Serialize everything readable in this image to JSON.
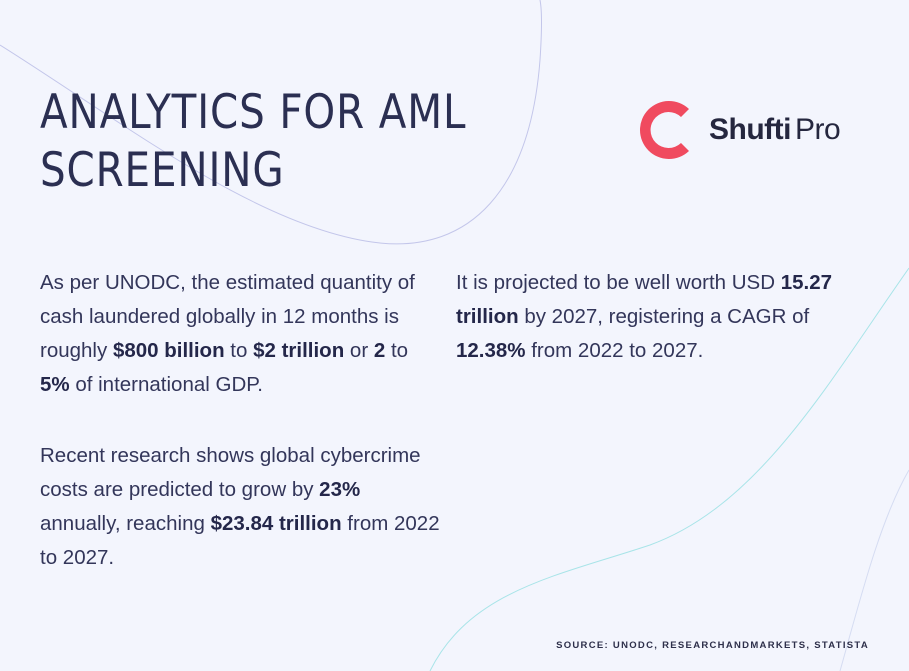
{
  "header": {
    "title_line1": "ANALYTICS FOR AML",
    "title_line2": "SCREENING"
  },
  "logo": {
    "icon": "shuftipro-ring-logo-icon",
    "text_bold": "Shufti",
    "text_light": "Pro",
    "colors": {
      "ring": "#f04a5f",
      "text": "#25273f"
    }
  },
  "paragraphs": {
    "p1": {
      "s1": "As per UNODC, the estimated quantity of cash laundered globally in 12 months is roughly ",
      "b1": "$800 billion",
      "s2": " to ",
      "b2": "$2 trillion",
      "s3": " or ",
      "b3": "2",
      "s4": " to ",
      "b4": "5%",
      "s5": " of international GDP."
    },
    "p2": {
      "s1": "Recent research shows global cybercrime costs are predicted to grow by ",
      "b1": "23%",
      "s2": " annually, reaching ",
      "b2": "$23.84 trillion",
      "s3": " from 2022 to 2027."
    },
    "p3": {
      "s1": "It is projected to be well worth USD ",
      "b1": "15.27 trillion",
      "s2": " by 2027, registering a CAGR of ",
      "b2": "12.38%",
      "s3": " from 2022 to 2027."
    }
  },
  "footer": {
    "source": "SOURCE: UNODC, RESEARCHANDMARKETS, STATISTA"
  },
  "colors": {
    "background": "#f3f5fd",
    "text": "#33365a",
    "decor_purple": "#b9bde6",
    "decor_teal": "#9fe3e6"
  }
}
